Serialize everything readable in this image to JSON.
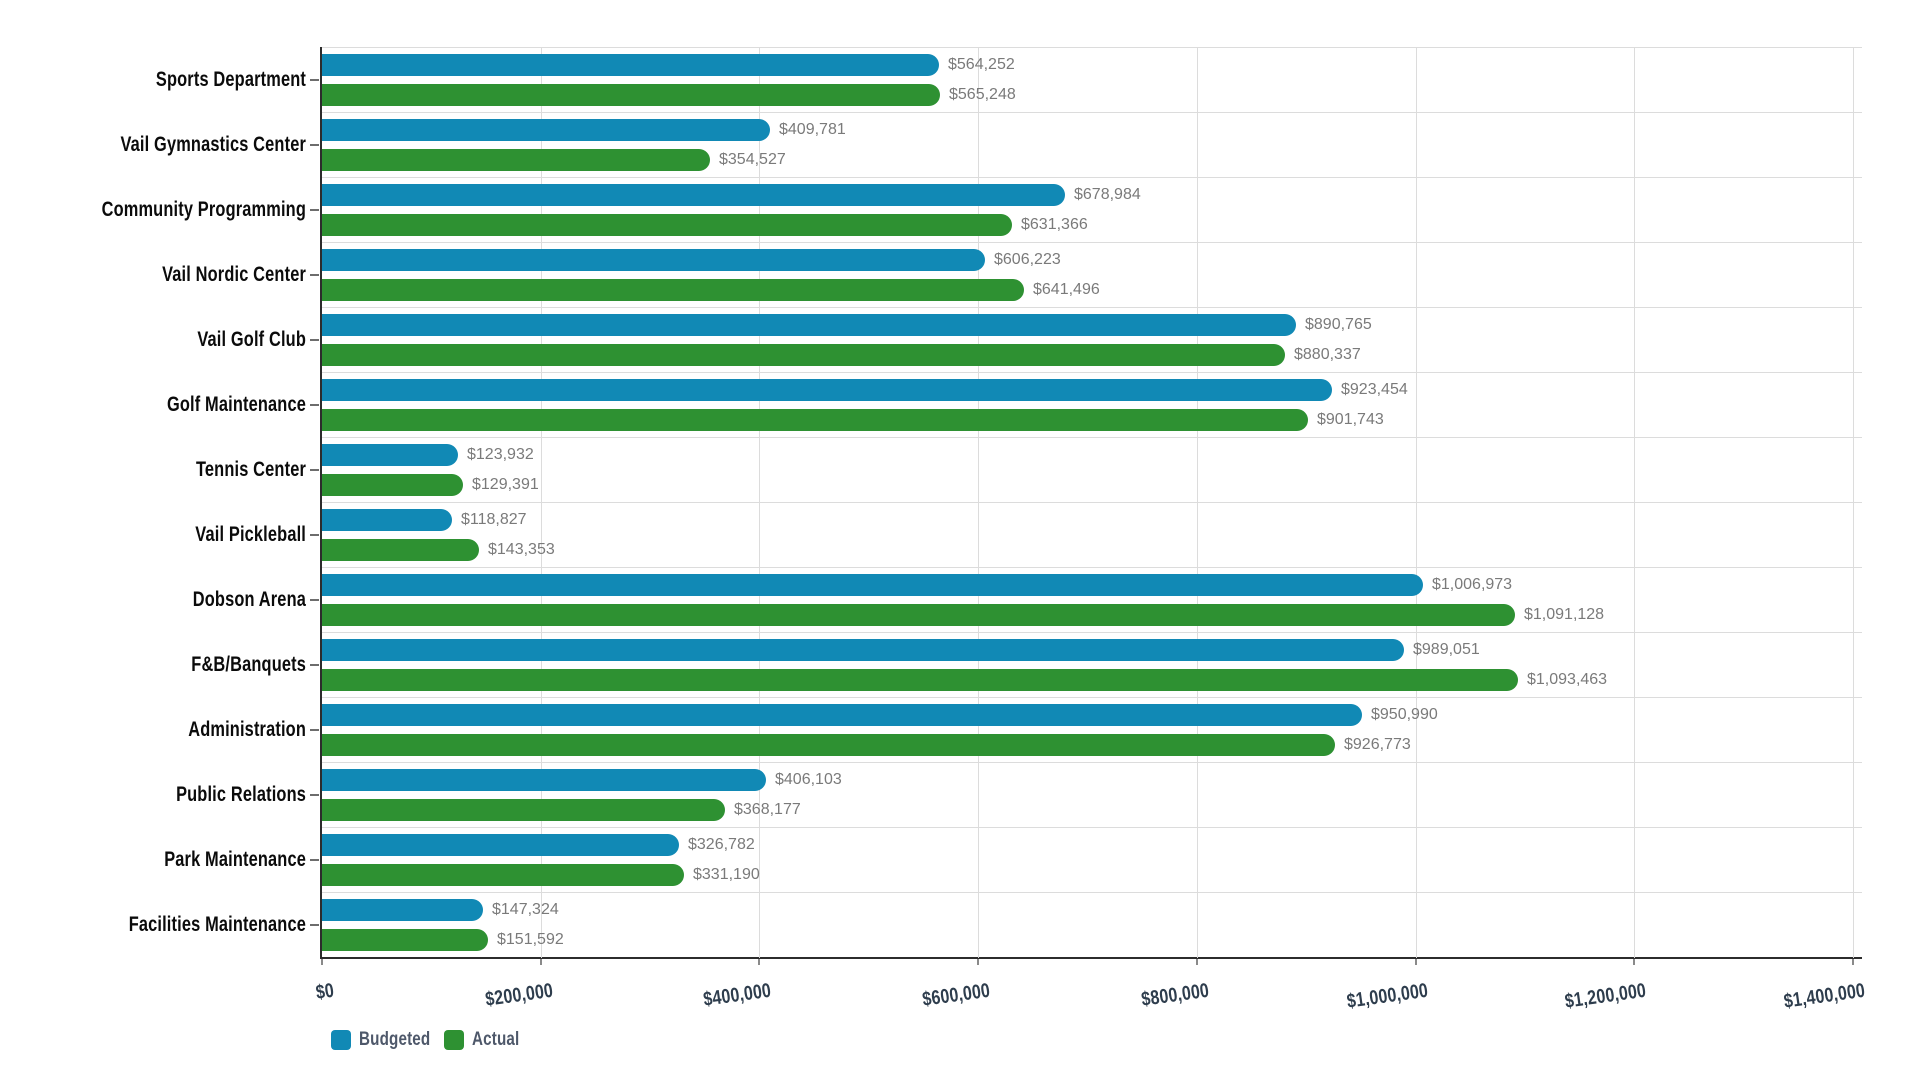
{
  "chart_data": {
    "type": "bar",
    "orientation": "horizontal",
    "title": "",
    "categories": [
      "Sports Department",
      "Vail Gymnastics Center",
      "Community Programming",
      "Vail Nordic Center",
      "Vail Golf Club",
      "Golf Maintenance",
      "Tennis Center",
      "Vail Pickleball",
      "Dobson Arena",
      "F&B/Banquets",
      "Administration",
      "Public Relations",
      "Park Maintenance",
      "Facilities Maintenance"
    ],
    "series": [
      {
        "name": "Budgeted",
        "color": "#1189B5",
        "values": [
          564252,
          409781,
          678984,
          606223,
          890765,
          923454,
          123932,
          118827,
          1006973,
          989051,
          950990,
          406103,
          326782,
          147324
        ],
        "labels": [
          "$564,252",
          "$409,781",
          "$678,984",
          "$606,223",
          "$890,765",
          "$923,454",
          "$123,932",
          "$118,827",
          "$1,006,973",
          "$989,051",
          "$950,990",
          "$406,103",
          "$326,782",
          "$147,324"
        ]
      },
      {
        "name": "Actual",
        "color": "#2E9132",
        "values": [
          565248,
          354527,
          631366,
          641496,
          880337,
          901743,
          129391,
          143353,
          1091128,
          1093463,
          926773,
          368177,
          331190,
          151592
        ],
        "labels": [
          "$565,248",
          "$354,527",
          "$631,366",
          "$641,496",
          "$880,337",
          "$901,743",
          "$129,391",
          "$143,353",
          "$1,091,128",
          "$1,093,463",
          "$926,773",
          "$368,177",
          "$331,190",
          "$151,592"
        ]
      }
    ],
    "xlabel": "",
    "ylabel": "",
    "xlim": [
      0,
      1400000
    ],
    "x_ticks": [
      {
        "value": 0,
        "label": "$0"
      },
      {
        "value": 200000,
        "label": "$200,000"
      },
      {
        "value": 400000,
        "label": "$400,000"
      },
      {
        "value": 600000,
        "label": "$600,000"
      },
      {
        "value": 800000,
        "label": "$800,000"
      },
      {
        "value": 1000000,
        "label": "$1,000,000"
      },
      {
        "value": 1200000,
        "label": "$1,200,000"
      },
      {
        "value": 1400000,
        "label": "$1,400,000"
      }
    ],
    "grid": true,
    "legend_position": "bottom-left"
  },
  "colors": {
    "budgeted": "#1189B5",
    "actual": "#2E9132",
    "value_label": "#7a7a7a",
    "category_label": "#0b0b0b",
    "axis_tick_label": "#2e3d4d",
    "legend_label": "#4e586a",
    "gridline": "#dcdcdc",
    "axis_line": "#2c2c2c",
    "background": "#ffffff"
  }
}
